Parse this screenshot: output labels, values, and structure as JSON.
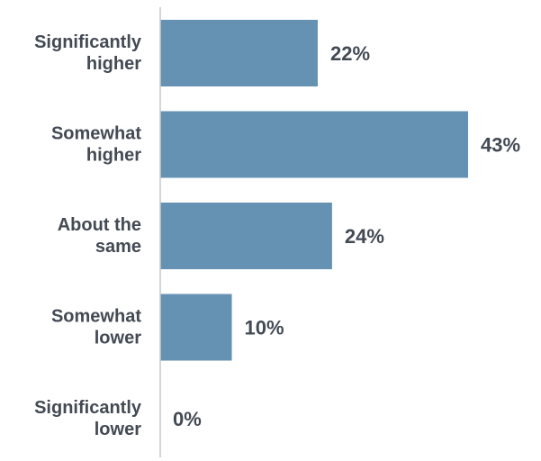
{
  "chart_data": {
    "type": "bar",
    "orientation": "horizontal",
    "categories": [
      [
        "Significantly",
        "higher"
      ],
      [
        "Somewhat",
        "higher"
      ],
      [
        "About the",
        "same"
      ],
      [
        "Somewhat",
        "lower"
      ],
      [
        "Significantly",
        "lower"
      ]
    ],
    "values": [
      22,
      43,
      24,
      10,
      0
    ],
    "value_labels": [
      "22%",
      "43%",
      "24%",
      "10%",
      "0%"
    ],
    "unit": "%",
    "title": "",
    "xlabel": "",
    "ylabel": "",
    "xlim": [
      0,
      43
    ],
    "grid": false,
    "legend": "none",
    "bar_color": "#6591b3",
    "axis_color": "#c8c8c8",
    "text_color": "#434a54"
  }
}
